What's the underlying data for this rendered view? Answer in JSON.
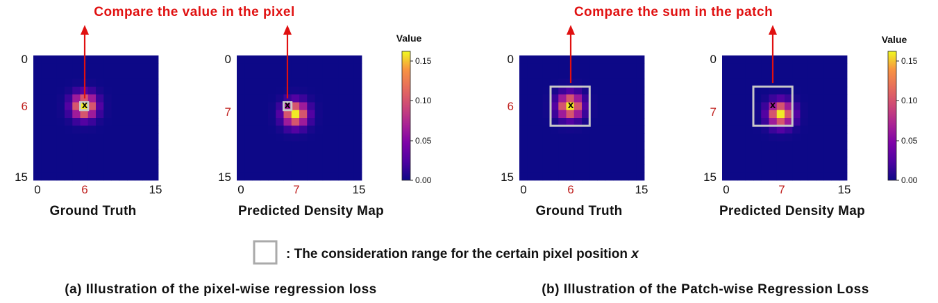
{
  "panels": [
    {
      "heading": "Compare the value in the pixel",
      "plots": [
        {
          "xlabel": "Ground Truth",
          "marker": "x",
          "peak": [
            6,
            6
          ],
          "mark": [
            6,
            6
          ],
          "box_size": 1,
          "yticks": [
            "0",
            "6",
            "15"
          ],
          "xticks": [
            "0",
            "6",
            "15"
          ],
          "red_tick": "6"
        },
        {
          "xlabel": "Predicted Density Map",
          "marker": "x",
          "peak": [
            7,
            7
          ],
          "mark": [
            6,
            6
          ],
          "box_size": 1,
          "yticks": [
            "0",
            "7",
            "15"
          ],
          "xticks": [
            "0",
            "7",
            "15"
          ],
          "red_tick": "7"
        }
      ],
      "colorbar": {
        "title": "Value",
        "ticks": [
          "0.15",
          "0.10",
          "0.05",
          "0.00"
        ]
      },
      "caption": "(a) Illustration of the pixel-wise regression loss"
    },
    {
      "heading": "Compare the sum in the patch",
      "plots": [
        {
          "xlabel": "Ground Truth",
          "marker": "x",
          "peak": [
            6,
            6
          ],
          "mark": [
            6,
            6
          ],
          "box_size": 5,
          "yticks": [
            "0",
            "6",
            "15"
          ],
          "xticks": [
            "0",
            "6",
            "15"
          ],
          "red_tick": "6"
        },
        {
          "xlabel": "Predicted Density Map",
          "marker": "x",
          "peak": [
            7,
            7
          ],
          "mark": [
            6,
            6
          ],
          "box_size": 5,
          "yticks": [
            "0",
            "7",
            "15"
          ],
          "xticks": [
            "0",
            "7",
            "15"
          ],
          "red_tick": "7"
        }
      ],
      "colorbar": {
        "title": "Value",
        "ticks": [
          "0.15",
          "0.10",
          "0.05",
          "0.00"
        ]
      },
      "caption": "(b) Illustration of the Patch-wise Regression Loss"
    }
  ],
  "legend": {
    "text": ": The consideration range for the certain pixel position ",
    "var": "x"
  },
  "colors": {
    "arrow": "#e01010",
    "box": "#c8c8c8",
    "heatmap_low": "#0d0887",
    "heatmap_high": "#f0f921"
  }
}
